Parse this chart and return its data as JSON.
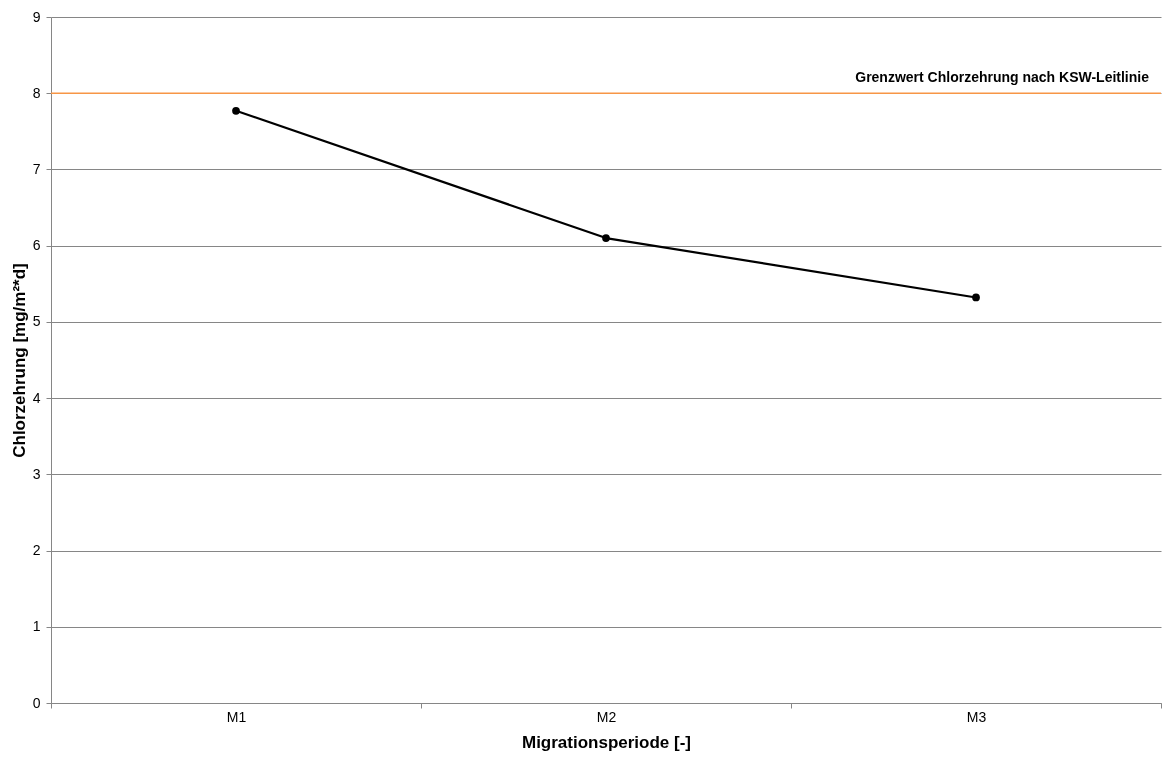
{
  "chart_data": {
    "type": "line",
    "xlabel": "Migrationsperiode [-]",
    "ylabel": "Chlorzehrung [mg/m²*d]",
    "categories": [
      "M1",
      "M2",
      "M3"
    ],
    "series": [
      {
        "color": "#000000",
        "values": [
          7.77,
          6.1,
          5.32
        ]
      }
    ],
    "ylim": [
      0,
      9
    ],
    "yticks": [
      0,
      1,
      2,
      3,
      4,
      5,
      6,
      7,
      8,
      9
    ],
    "grid": "y",
    "marker": "circle",
    "line_style": "solid",
    "ref_lines": [
      {
        "axis": "y",
        "value": 8,
        "label": "Grenzwert Chlorzehrung nach KSW-Leitlinie",
        "color": "#f79646"
      }
    ]
  }
}
